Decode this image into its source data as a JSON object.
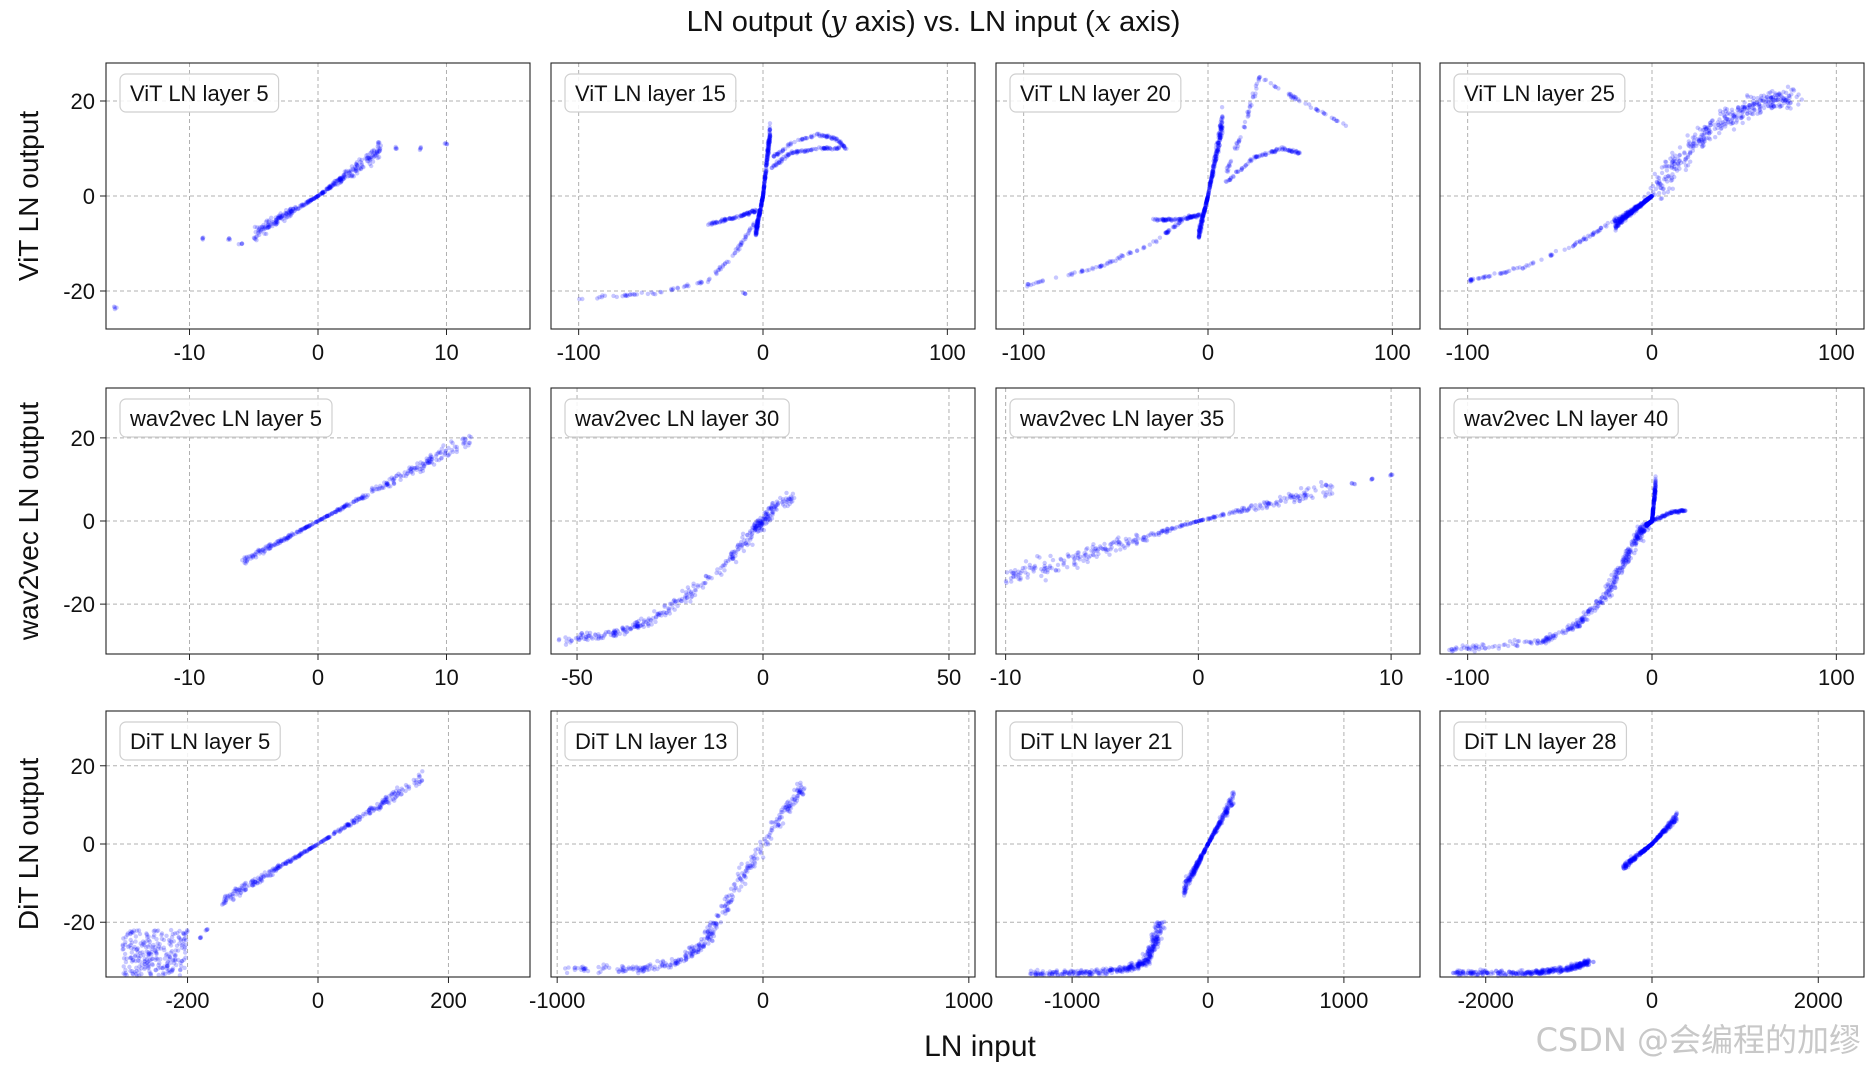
{
  "figure": {
    "title_prefix": "LN output (",
    "title_var_y": "y",
    "title_mid": " axis) vs. LN input (",
    "title_var_x": "x",
    "title_suffix": " axis)",
    "xlabel": "LN input",
    "watermark": "CSDN @会编程的加缪",
    "colors": {
      "points": "#0000ff",
      "grid": "#b0b0b0",
      "axes": "#222222"
    }
  },
  "chart_data": [
    {
      "type": "scatter",
      "row": 0,
      "col": 0,
      "title": "ViT LN layer 5",
      "ylabel": "ViT LN output",
      "xlim": [
        -16.5,
        16.5
      ],
      "ylim": [
        -28,
        28
      ],
      "xticks": [
        -10,
        0,
        10
      ],
      "yticks": [
        -20,
        0,
        20
      ],
      "series": [
        {
          "name": "main",
          "shape": "bowtie",
          "x": [
            -5,
            5
          ],
          "y": [
            -8,
            10
          ],
          "spread": 0.35
        },
        {
          "name": "tail-left",
          "shape": "points",
          "x": [
            -9,
            -7,
            -6
          ],
          "y": [
            -9,
            -9,
            -10
          ]
        },
        {
          "name": "tail-right",
          "shape": "points",
          "x": [
            6,
            8,
            10
          ],
          "y": [
            10,
            10,
            11
          ]
        },
        {
          "name": "outlier",
          "shape": "points",
          "x": [
            -15.8
          ],
          "y": [
            -23.5
          ]
        }
      ]
    },
    {
      "type": "scatter",
      "row": 0,
      "col": 1,
      "title": "ViT LN layer 15",
      "xlim": [
        -115,
        115
      ],
      "ylim": [
        -28,
        28
      ],
      "xticks": [
        -100,
        0,
        100
      ],
      "yticks": [
        -20,
        0,
        20
      ],
      "series": [
        {
          "name": "main",
          "shape": "bowtie",
          "x": [
            -4,
            4
          ],
          "y": [
            -8,
            14
          ],
          "spread": 0.3
        },
        {
          "name": "left-branch",
          "shape": "curve",
          "x": [
            -100,
            -60,
            -30,
            -15,
            -5
          ],
          "y": [
            -21.5,
            -20.5,
            -18,
            -12,
            -6
          ]
        },
        {
          "name": "left-arm",
          "shape": "curve",
          "x": [
            -30,
            -20,
            -10,
            -4
          ],
          "y": [
            -6,
            -5,
            -4,
            -3
          ]
        },
        {
          "name": "upper-arm",
          "shape": "curve",
          "x": [
            5,
            15,
            30,
            40,
            45
          ],
          "y": [
            8,
            11,
            13,
            12,
            10
          ]
        },
        {
          "name": "lower-arm",
          "shape": "curve",
          "x": [
            5,
            15,
            30,
            42
          ],
          "y": [
            6,
            9,
            10,
            10
          ]
        },
        {
          "name": "outlier",
          "shape": "points",
          "x": [
            -10
          ],
          "y": [
            -20.5
          ]
        }
      ]
    },
    {
      "type": "scatter",
      "row": 0,
      "col": 2,
      "title": "ViT LN layer 20",
      "xlim": [
        -115,
        115
      ],
      "ylim": [
        -28,
        28
      ],
      "xticks": [
        -100,
        0,
        100
      ],
      "yticks": [
        -20,
        0,
        20
      ],
      "series": [
        {
          "name": "main",
          "shape": "bowtie",
          "x": [
            -5,
            8
          ],
          "y": [
            -8,
            16
          ],
          "spread": 0.3
        },
        {
          "name": "left-branch",
          "shape": "curve",
          "x": [
            -100,
            -60,
            -30,
            -10
          ],
          "y": [
            -19,
            -15,
            -10,
            -4
          ]
        },
        {
          "name": "left-arm",
          "shape": "curve",
          "x": [
            -30,
            -15,
            -5
          ],
          "y": [
            -5,
            -5,
            -4
          ]
        },
        {
          "name": "upper-arm",
          "shape": "curve",
          "x": [
            10,
            20,
            28,
            50,
            75
          ],
          "y": [
            5,
            15,
            25,
            20,
            15
          ]
        },
        {
          "name": "lower-arm",
          "shape": "curve",
          "x": [
            10,
            25,
            40,
            50
          ],
          "y": [
            3,
            8,
            10,
            9
          ]
        }
      ]
    },
    {
      "type": "scatter",
      "row": 0,
      "col": 3,
      "title": "ViT LN layer 25",
      "xlim": [
        -115,
        115
      ],
      "ylim": [
        -28,
        28
      ],
      "xticks": [
        -100,
        0,
        100
      ],
      "yticks": [
        -20,
        0,
        20
      ],
      "series": [
        {
          "name": "main",
          "shape": "band",
          "x": [
            0,
            20,
            40,
            60,
            75
          ],
          "y": [
            0,
            10,
            16,
            20,
            21
          ],
          "spread": 3
        },
        {
          "name": "left",
          "shape": "bowtie",
          "x": [
            -20,
            0
          ],
          "y": [
            -6,
            0
          ],
          "spread": 0.3
        },
        {
          "name": "left-branch",
          "shape": "curve",
          "x": [
            -100,
            -70,
            -40,
            -20
          ],
          "y": [
            -18,
            -15,
            -10,
            -5
          ]
        }
      ]
    },
    {
      "type": "scatter",
      "row": 1,
      "col": 0,
      "title": "wav2vec LN layer 5",
      "ylabel": "wav2vec LN output",
      "xlim": [
        -16.5,
        16.5
      ],
      "ylim": [
        -32,
        32
      ],
      "xticks": [
        -10,
        0,
        10
      ],
      "yticks": [
        -20,
        0,
        20
      ],
      "series": [
        {
          "name": "main",
          "shape": "bowtie",
          "x": [
            -6,
            12
          ],
          "y": [
            -10,
            20
          ],
          "spread": 0.18
        }
      ]
    },
    {
      "type": "scatter",
      "row": 1,
      "col": 1,
      "title": "wav2vec LN layer 30",
      "xlim": [
        -57,
        57
      ],
      "ylim": [
        -32,
        32
      ],
      "xticks": [
        -50,
        0,
        50
      ],
      "yticks": [
        -20,
        0,
        20
      ],
      "series": [
        {
          "name": "main",
          "shape": "band",
          "x": [
            -55,
            -40,
            -30,
            -20,
            -10,
            -2,
            0,
            3,
            8
          ],
          "y": [
            -29,
            -27,
            -24,
            -18,
            -10,
            -2,
            0,
            3,
            6
          ],
          "spread": 1.6
        }
      ]
    },
    {
      "type": "scatter",
      "row": 1,
      "col": 2,
      "title": "wav2vec LN layer 35",
      "xlim": [
        -10.5,
        11.5
      ],
      "ylim": [
        -32,
        32
      ],
      "xticks": [
        -10,
        0,
        10
      ],
      "yticks": [
        -20,
        0,
        20
      ],
      "series": [
        {
          "name": "main",
          "shape": "bowtie",
          "x": [
            -10,
            7
          ],
          "y": [
            -14,
            8
          ],
          "spread": 0.4
        },
        {
          "name": "tail-right",
          "shape": "points",
          "x": [
            8,
            9,
            10
          ],
          "y": [
            9,
            10,
            11
          ]
        }
      ]
    },
    {
      "type": "scatter",
      "row": 1,
      "col": 3,
      "title": "wav2vec LN layer 40",
      "xlim": [
        -115,
        115
      ],
      "ylim": [
        -32,
        32
      ],
      "xticks": [
        -100,
        0,
        100
      ],
      "yticks": [
        -20,
        0,
        20
      ],
      "series": [
        {
          "name": "main",
          "shape": "band",
          "x": [
            -110,
            -60,
            -40,
            -25,
            -15,
            -8,
            -4
          ],
          "y": [
            -31,
            -29,
            -25,
            -18,
            -10,
            -4,
            -1
          ],
          "spread": 1.2
        },
        {
          "name": "x-shape",
          "shape": "bowtie",
          "x": [
            -3,
            2
          ],
          "y": [
            -1,
            9
          ],
          "spread": 0.4
        },
        {
          "name": "right-arm",
          "shape": "curve",
          "x": [
            0,
            10,
            18
          ],
          "y": [
            0,
            2,
            2.5
          ]
        }
      ]
    },
    {
      "type": "scatter",
      "row": 2,
      "col": 0,
      "title": "DiT LN layer 5",
      "ylabel": "DiT LN output",
      "xlim": [
        -325,
        325
      ],
      "ylim": [
        -34,
        34
      ],
      "xticks": [
        -200,
        0,
        200
      ],
      "yticks": [
        -20,
        0,
        20
      ],
      "series": [
        {
          "name": "main",
          "shape": "bowtie",
          "x": [
            -150,
            160
          ],
          "y": [
            -15,
            17
          ],
          "spread": 0.18
        },
        {
          "name": "cluster",
          "shape": "blob",
          "x": [
            -300,
            -200
          ],
          "y": [
            -34,
            -22
          ]
        },
        {
          "name": "tail",
          "shape": "points",
          "x": [
            -180,
            -170
          ],
          "y": [
            -24,
            -22
          ]
        }
      ]
    },
    {
      "type": "scatter",
      "row": 2,
      "col": 1,
      "title": "DiT LN layer 13",
      "xlim": [
        -1030,
        1030
      ],
      "ylim": [
        -34,
        34
      ],
      "xticks": [
        -1000,
        0,
        1000
      ],
      "yticks": [
        -20,
        0,
        20
      ],
      "series": [
        {
          "name": "main",
          "shape": "band",
          "x": [
            -950,
            -600,
            -400,
            -300,
            -200,
            -100,
            0,
            100,
            200
          ],
          "y": [
            -32,
            -32,
            -30,
            -26,
            -18,
            -8,
            0,
            8,
            15
          ],
          "spread": 1.5
        }
      ]
    },
    {
      "type": "scatter",
      "row": 2,
      "col": 2,
      "title": "DiT LN layer 21",
      "xlim": [
        -1560,
        1560
      ],
      "ylim": [
        -34,
        34
      ],
      "xticks": [
        -1000,
        0,
        1000
      ],
      "yticks": [
        -20,
        0,
        20
      ],
      "series": [
        {
          "name": "main",
          "shape": "band",
          "x": [
            -1300,
            -900,
            -600,
            -450,
            -400,
            -350
          ],
          "y": [
            -33,
            -33,
            -32,
            -30,
            -26,
            -20
          ],
          "spread": 1.2
        },
        {
          "name": "center",
          "shape": "bowtie",
          "x": [
            -180,
            190
          ],
          "y": [
            -12,
            12
          ],
          "spread": 0.3
        }
      ]
    },
    {
      "type": "scatter",
      "row": 2,
      "col": 3,
      "title": "DiT LN layer 28",
      "xlim": [
        -2550,
        2550
      ],
      "ylim": [
        -34,
        34
      ],
      "xticks": [
        -2000,
        0,
        2000
      ],
      "yticks": [
        -20,
        0,
        20
      ],
      "series": [
        {
          "name": "main",
          "shape": "band",
          "x": [
            -2400,
            -1500,
            -1000,
            -750
          ],
          "y": [
            -33,
            -33,
            -32,
            -30
          ],
          "spread": 1
        },
        {
          "name": "center",
          "shape": "bowtie",
          "x": [
            -350,
            300
          ],
          "y": [
            -6,
            7
          ],
          "spread": 0.3
        }
      ]
    }
  ]
}
